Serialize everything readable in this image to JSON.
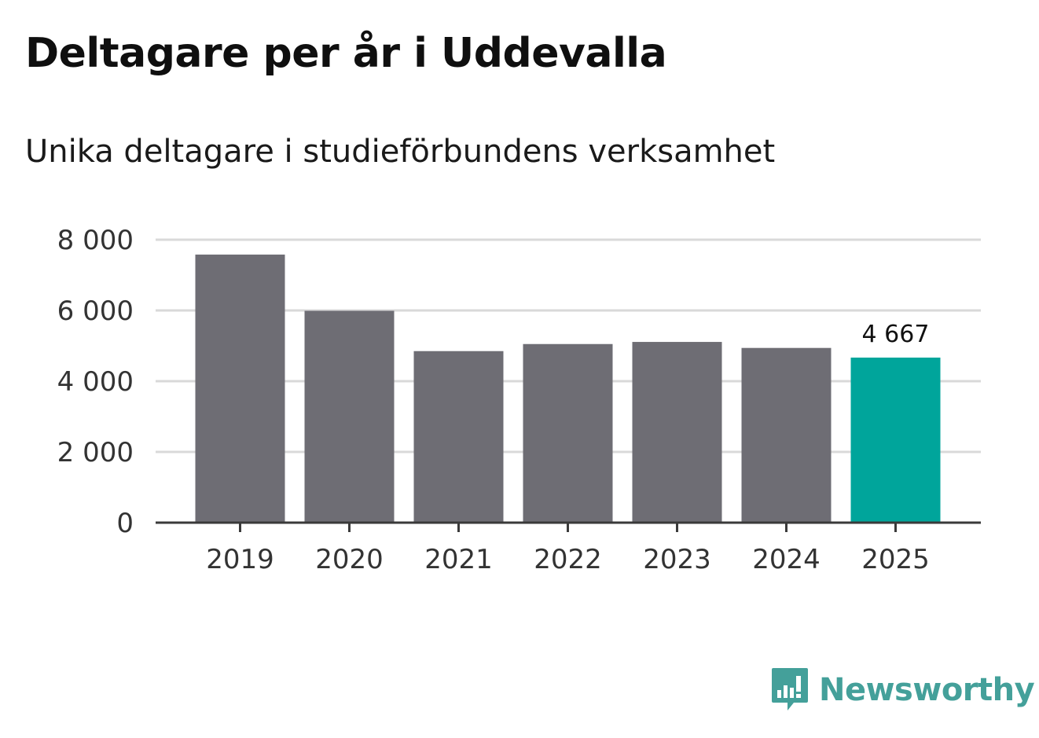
{
  "header": {
    "title": "Deltagare per år i Uddevalla",
    "subtitle": "Unika deltagare i studieförbundens verksamhet"
  },
  "brand": {
    "name": "Newsworthy",
    "color": "#44a09a",
    "icon": "bar-chart-speech-bubble-icon"
  },
  "colors": {
    "bar_default": "#6e6d74",
    "bar_highlight": "#00a59b",
    "grid": "#d9d9d9",
    "axis": "#3a3a3a"
  },
  "chart_data": {
    "type": "bar",
    "title": "Deltagare per år i Uddevalla",
    "subtitle": "Unika deltagare i studieförbundens verksamhet",
    "xlabel": "",
    "ylabel": "",
    "categories": [
      "2019",
      "2020",
      "2021",
      "2022",
      "2023",
      "2024",
      "2025"
    ],
    "values": [
      7580,
      5990,
      4850,
      5050,
      5110,
      4940,
      4667
    ],
    "highlight_index": 6,
    "data_labels": [
      {
        "index": 6,
        "text": "4 667"
      }
    ],
    "ylim": [
      0,
      8000
    ],
    "yticks": [
      0,
      2000,
      4000,
      6000,
      8000
    ],
    "ytick_labels": [
      "0",
      "2 000",
      "4 000",
      "6 000",
      "8 000"
    ],
    "grid": true
  }
}
